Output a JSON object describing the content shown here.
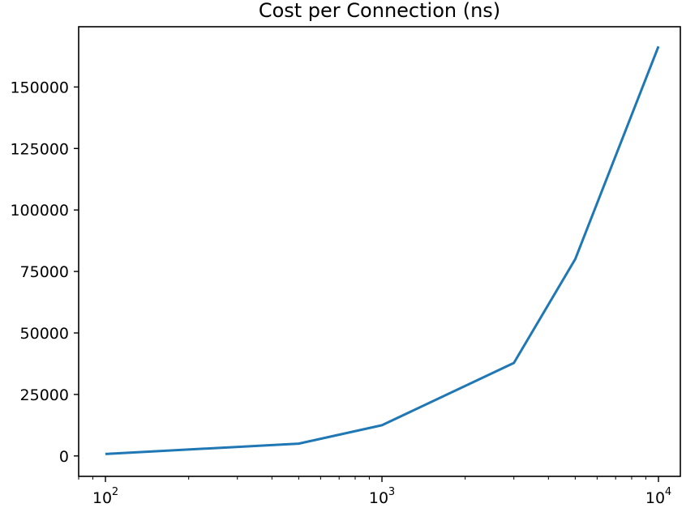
{
  "chart_data": {
    "type": "line",
    "title": "Cost per Connection (ns)",
    "xlabel": "",
    "ylabel": "",
    "x_scale": "log",
    "xlim": [
      80,
      12000
    ],
    "ylim": [
      -8300,
      174500
    ],
    "grid": false,
    "legend": "none",
    "x_ticks": [
      {
        "value": 100,
        "base": "10",
        "exp": "2"
      },
      {
        "value": 1000,
        "base": "10",
        "exp": "3"
      },
      {
        "value": 10000,
        "base": "10",
        "exp": "4"
      }
    ],
    "y_ticks": [
      {
        "value": 0,
        "label": "0"
      },
      {
        "value": 25000,
        "label": "25000"
      },
      {
        "value": 50000,
        "label": "50000"
      },
      {
        "value": 75000,
        "label": "75000"
      },
      {
        "value": 100000,
        "label": "100000"
      },
      {
        "value": 125000,
        "label": "125000"
      },
      {
        "value": 150000,
        "label": "150000"
      }
    ],
    "series": [
      {
        "color": "#1f77b4",
        "x": [
          100,
          500,
          1000,
          3000,
          5000,
          10000
        ],
        "y": [
          800,
          5000,
          12500,
          37800,
          80000,
          166500
        ]
      }
    ]
  }
}
